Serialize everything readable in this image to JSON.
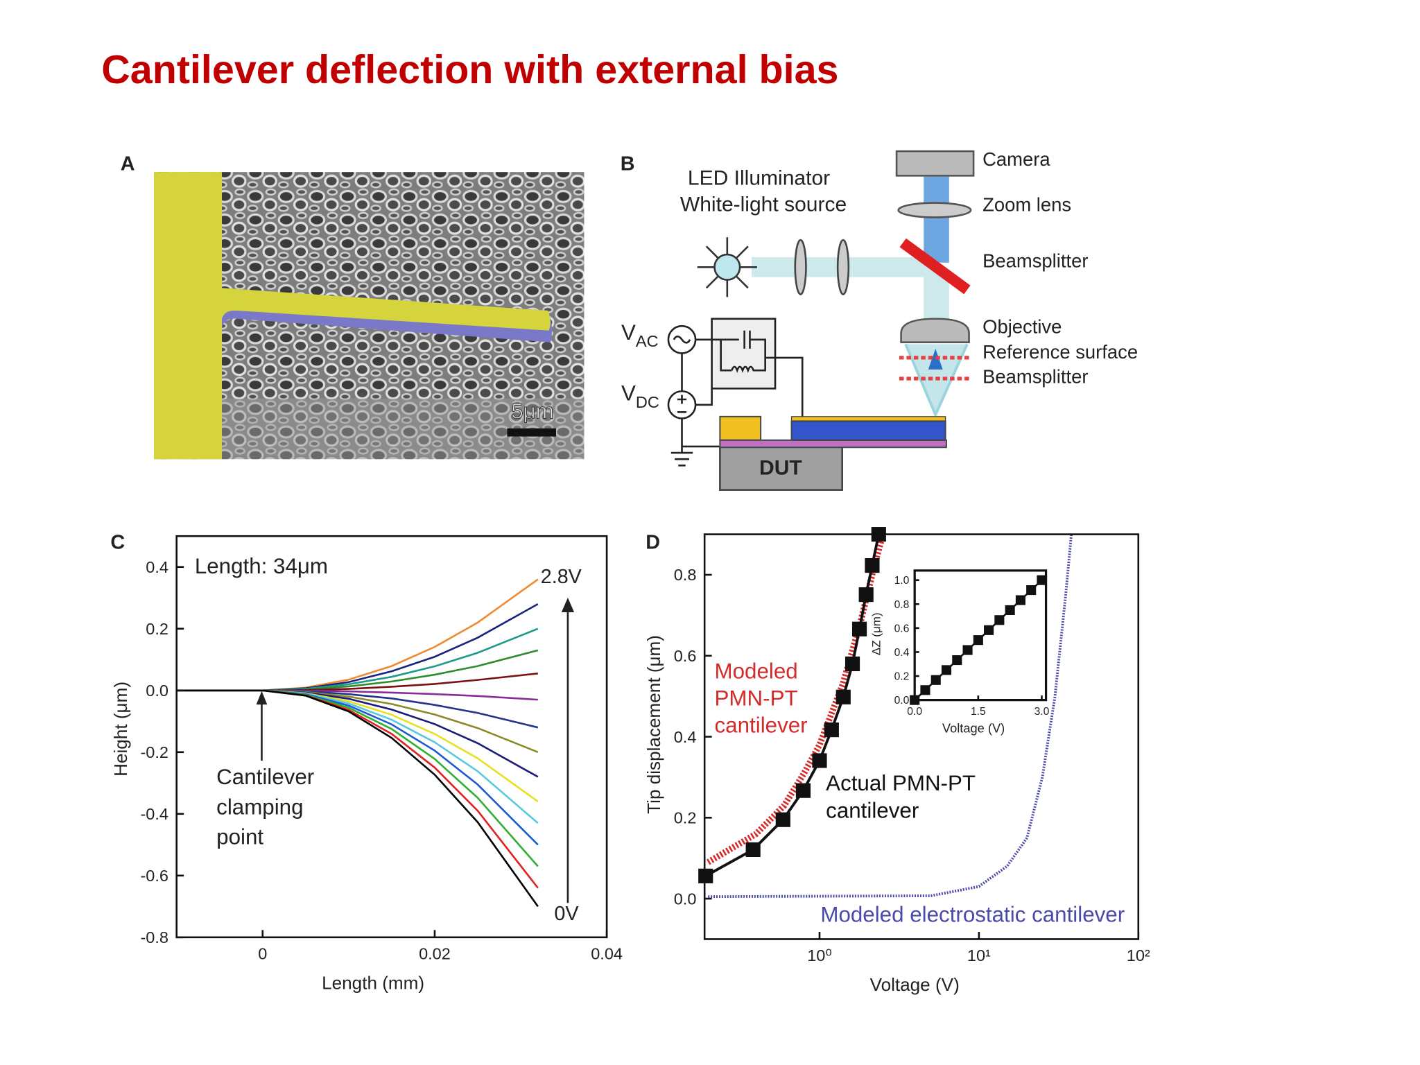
{
  "title": "Cantilever deflection with external bias",
  "panels": {
    "a": {
      "label": "A",
      "scale_bar": "5μm"
    },
    "b": {
      "label": "B",
      "led": "LED Illuminator",
      "source": "White-light source",
      "camera": "Camera",
      "zoom": "Zoom lens",
      "splitter_top": "Beamsplitter",
      "objective": "Objective",
      "reference": "Reference surface",
      "splitter_bottom": "Beamsplitter",
      "vac": {
        "base": "V",
        "sub": "AC"
      },
      "vdc": {
        "base": "V",
        "sub": "DC"
      },
      "dut": "DUT"
    }
  },
  "chart_data": [
    {
      "type": "line",
      "panel_label": "C",
      "xlabel": "Length (mm)",
      "ylabel": "Height (μm)",
      "x": [
        -0.01,
        0,
        0.005,
        0.01,
        0.015,
        0.02,
        0.025,
        0.032
      ],
      "xlim": [
        -0.01,
        0.04
      ],
      "xticks": [
        0,
        0.02,
        0.04
      ],
      "ylim": [
        -0.8,
        0.5
      ],
      "yticks": [
        -0.8,
        -0.6,
        -0.4,
        -0.2,
        {
          "value": 0,
          "label": "0.0"
        },
        0.2,
        0.4
      ],
      "annotations": [
        "Length: 34μm",
        "2.8V",
        "0V",
        "Cantilever clamping point"
      ],
      "series": [
        {
          "color": "#f08a30",
          "values": [
            0,
            0,
            0.009,
            0.035,
            0.079,
            0.141,
            0.22,
            0.36
          ]
        },
        {
          "color": "#1a237e",
          "values": [
            0,
            0,
            0.007,
            0.027,
            0.062,
            0.109,
            0.171,
            0.28
          ]
        },
        {
          "color": "#1e9a8a",
          "values": [
            0,
            0,
            0.005,
            0.02,
            0.044,
            0.078,
            0.122,
            0.2
          ]
        },
        {
          "color": "#2e8b2e",
          "values": [
            0,
            0,
            0.003,
            0.013,
            0.029,
            0.051,
            0.079,
            0.13
          ]
        },
        {
          "color": "#7a1010",
          "values": [
            0,
            0,
            0.001,
            0.005,
            0.012,
            0.021,
            0.034,
            0.055
          ]
        },
        {
          "color": "#8a2a9a",
          "values": [
            0,
            0,
            -0.001,
            -0.003,
            -0.007,
            -0.012,
            -0.018,
            -0.03
          ]
        },
        {
          "color": "#22338a",
          "values": [
            0,
            0,
            -0.003,
            -0.012,
            -0.026,
            -0.047,
            -0.073,
            -0.12
          ]
        },
        {
          "color": "#8a8a2a",
          "values": [
            0,
            0,
            -0.005,
            -0.02,
            -0.044,
            -0.078,
            -0.122,
            -0.2
          ]
        },
        {
          "color": "#1a1a7a",
          "values": [
            0,
            0,
            -0.007,
            -0.027,
            -0.062,
            -0.109,
            -0.171,
            -0.28
          ]
        },
        {
          "color": "#e8e020",
          "values": [
            0,
            0,
            -0.009,
            -0.035,
            -0.079,
            -0.141,
            -0.22,
            -0.36
          ]
        },
        {
          "color": "#5ac8e0",
          "values": [
            0,
            0,
            -0.01,
            -0.042,
            -0.095,
            -0.168,
            -0.262,
            -0.43
          ]
        },
        {
          "color": "#1e5ad8",
          "values": [
            0,
            0,
            -0.012,
            -0.049,
            -0.11,
            -0.195,
            -0.305,
            -0.5
          ]
        },
        {
          "color": "#30b030",
          "values": [
            0,
            0,
            -0.014,
            -0.056,
            -0.125,
            -0.222,
            -0.348,
            -0.57
          ]
        },
        {
          "color": "#e02020",
          "values": [
            0,
            0,
            -0.016,
            -0.063,
            -0.141,
            -0.25,
            -0.39,
            -0.64
          ]
        },
        {
          "color": "#000000",
          "values": [
            0,
            0,
            -0.017,
            -0.068,
            -0.154,
            -0.273,
            -0.427,
            -0.7
          ]
        }
      ]
    },
    {
      "type": "line",
      "panel_label": "D",
      "xlabel": "Voltage (V)",
      "ylabel": "Tip displacement (μm)",
      "log_x": true,
      "xlim": [
        0.19,
        100
      ],
      "xticks": [
        {
          "value": 1,
          "label": "10⁰"
        },
        {
          "value": 10,
          "label": "10¹"
        },
        {
          "value": 100,
          "label": "10²"
        }
      ],
      "ylim": [
        -0.1,
        0.9
      ],
      "yticks": [
        {
          "value": 0,
          "label": "0.0"
        },
        0.2,
        0.4,
        0.6,
        0.8
      ],
      "series": [
        {
          "name": "Modeled PMN-PT cantilever",
          "color": "#d42a2a",
          "line_style": "dotted",
          "line_width": 7,
          "x": [
            0.2,
            0.4,
            0.6,
            0.8,
            1.0,
            1.4,
            1.8,
            2.2,
            2.5
          ],
          "values": [
            0.09,
            0.16,
            0.23,
            0.31,
            0.38,
            0.53,
            0.68,
            0.82,
            0.9
          ]
        },
        {
          "name": "Actual PMN-PT cantilever",
          "color": "#111111",
          "line_style": "solid",
          "line_width": 3,
          "marker": "square",
          "x": [
            0.193,
            0.383,
            0.59,
            0.79,
            1.0,
            1.19,
            1.41,
            1.61,
            1.78,
            1.96,
            2.14,
            2.35
          ],
          "values": [
            0.056,
            0.121,
            0.195,
            0.267,
            0.341,
            0.417,
            0.498,
            0.58,
            0.666,
            0.751,
            0.823,
            0.9
          ]
        },
        {
          "name": "Modeled electrostatic cantilever",
          "color": "#4a4aaa",
          "line_style": "dotted",
          "line_width": 3,
          "x": [
            0.2,
            5,
            10,
            15,
            20,
            25,
            30,
            35,
            38
          ],
          "values": [
            0.005,
            0.007,
            0.03,
            0.08,
            0.15,
            0.3,
            0.5,
            0.75,
            0.9
          ]
        }
      ]
    },
    {
      "type": "line",
      "xlabel": "Voltage (V)",
      "ylabel": "ΔZ (μm)",
      "xlim": [
        0,
        3.1
      ],
      "xticks": [
        {
          "value": 0,
          "label": "0.0"
        },
        1.5,
        {
          "value": 3,
          "label": "3.0"
        }
      ],
      "ylim": [
        0,
        1.08
      ],
      "yticks": [
        {
          "value": 0,
          "label": "0.0"
        },
        0.2,
        0.4,
        0.6,
        0.8,
        {
          "value": 1,
          "label": "1.0"
        }
      ],
      "series": [
        {
          "color": "#111111",
          "line_style": "solid",
          "line_width": 2,
          "marker": "square",
          "x": [
            0,
            0.25,
            0.5,
            0.75,
            1.0,
            1.25,
            1.5,
            1.75,
            2.0,
            2.25,
            2.5,
            2.75,
            3.0
          ],
          "values": [
            0,
            0.083,
            0.167,
            0.25,
            0.333,
            0.417,
            0.5,
            0.583,
            0.667,
            0.75,
            0.833,
            0.917,
            1.0
          ]
        }
      ]
    }
  ]
}
